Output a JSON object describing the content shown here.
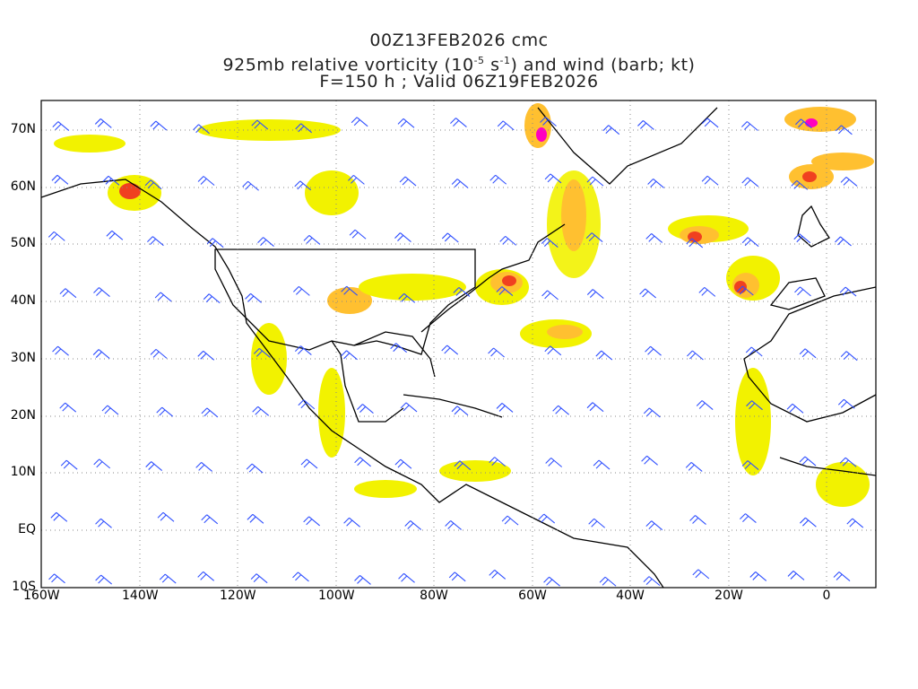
{
  "title": {
    "line1": "00Z13FEB2026 cmc",
    "line2_pre": "925mb relative vorticity (10",
    "line2_exp1": "-5",
    "line2_mid": " s",
    "line2_exp2": "-1",
    "line2_post": ") and wind (barb; kt)",
    "line3": "F=150 h ; Valid 06Z19FEB2026"
  },
  "axes": {
    "lat_labels": [
      "70N",
      "60N",
      "50N",
      "40N",
      "30N",
      "20N",
      "10N",
      "EQ",
      "10S"
    ],
    "lon_labels": [
      "160W",
      "140W",
      "120W",
      "100W",
      "80W",
      "60W",
      "40W",
      "20W",
      "0"
    ]
  },
  "colors": {
    "shade_low": "#f2f200",
    "shade_mid": "#ffc030",
    "shade_high": "#f04020",
    "shade_max": "#ff00c0",
    "barb": "#3050ff",
    "grid": "#888888"
  }
}
